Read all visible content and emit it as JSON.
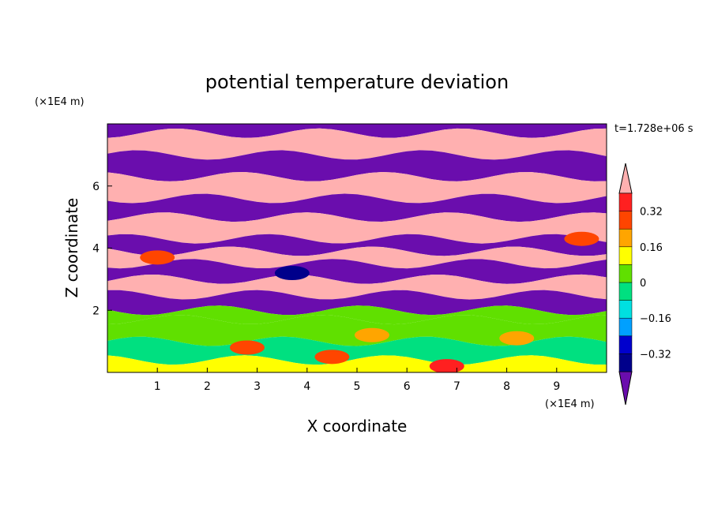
{
  "chart_data": {
    "type": "heatmap",
    "title": "potential temperature deviation",
    "xlabel": "X coordinate",
    "ylabel": "Z coordinate",
    "x_unit": "(×1E4 m)",
    "z_unit": "(×1E4 m)",
    "time_label": "t=1.728e+06 s",
    "xlim": [
      0,
      10
    ],
    "ylim": [
      0,
      8
    ],
    "x_ticks": [
      "1",
      "2",
      "3",
      "4",
      "5",
      "6",
      "7",
      "8",
      "9"
    ],
    "y_ticks": [
      "2",
      "4",
      "6"
    ],
    "colorbar": {
      "levels": [
        -0.4,
        -0.32,
        -0.24,
        -0.16,
        -0.08,
        0,
        0.08,
        0.16,
        0.24,
        0.32,
        0.4
      ],
      "tick_labels": [
        "0.32",
        "0.16",
        "0",
        "−0.16",
        "−0.32"
      ],
      "colors": [
        "#6a0dad",
        "#00008b",
        "#0000cd",
        "#00a0ff",
        "#00e0e0",
        "#00e080",
        "#60e000",
        "#ffff00",
        "#ffa500",
        "#ff4500",
        "#ff2020",
        "#ffb0b0"
      ],
      "extend": "both"
    },
    "layers": [
      {
        "z_top": 8.0,
        "z_bottom": 7.7,
        "value": -0.45
      },
      {
        "z_top": 7.7,
        "z_bottom": 7.0,
        "value": 0.45
      },
      {
        "z_top": 7.0,
        "z_bottom": 6.3,
        "value": -0.45
      },
      {
        "z_top": 6.3,
        "z_bottom": 5.6,
        "value": 0.45
      },
      {
        "z_top": 5.6,
        "z_bottom": 5.0,
        "value": -0.45
      },
      {
        "z_top": 5.0,
        "z_bottom": 4.3,
        "value": 0.45
      },
      {
        "z_top": 4.3,
        "z_bottom": 3.9,
        "value": -0.45
      },
      {
        "z_top": 3.9,
        "z_bottom": 3.5,
        "value": 0.45
      },
      {
        "z_top": 3.5,
        "z_bottom": 3.0,
        "value": -0.45
      },
      {
        "z_top": 3.0,
        "z_bottom": 2.5,
        "value": 0.45
      },
      {
        "z_top": 2.5,
        "z_bottom": 2.0,
        "value": -0.45
      },
      {
        "z_top": 2.0,
        "z_bottom": 1.7,
        "value": 0.05
      },
      {
        "z_top": 1.7,
        "z_bottom": 1.0,
        "value": 0.02
      },
      {
        "z_top": 1.0,
        "z_bottom": 0.4,
        "value": -0.06
      },
      {
        "z_top": 0.4,
        "z_bottom": 0.0,
        "value": 0.1
      }
    ],
    "features": [
      {
        "x": 3.7,
        "z": 3.2,
        "value": -0.4
      },
      {
        "x": 5.3,
        "z": 1.2,
        "value": 0.2
      },
      {
        "x": 4.5,
        "z": 0.5,
        "value": 0.25
      },
      {
        "x": 8.2,
        "z": 1.1,
        "value": 0.2
      },
      {
        "x": 2.8,
        "z": 0.8,
        "value": 0.3
      },
      {
        "x": 6.8,
        "z": 0.2,
        "value": 0.35
      },
      {
        "x": 1.0,
        "z": 3.7,
        "value": 0.3
      },
      {
        "x": 9.5,
        "z": 4.3,
        "value": 0.3
      }
    ]
  }
}
